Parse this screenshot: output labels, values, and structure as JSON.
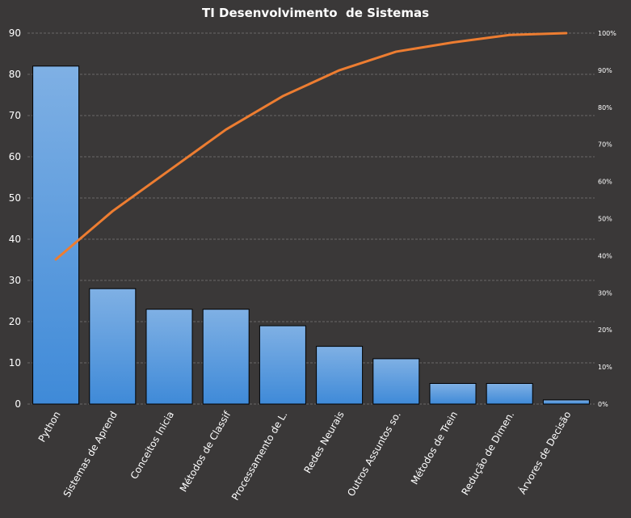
{
  "chart_data": {
    "type": "bar",
    "title": "TI Desenvolvimento  de Sistemas",
    "xlabel": "",
    "ylabel": "",
    "categories": [
      "Python",
      "Sistemas de Aprend",
      "Conceitos Inicia",
      "Métodos de Classif",
      "Processamento de L.",
      "Redes Neurais",
      "Outros Assuntos so.",
      "Métodos de Trein",
      "Redução de Dimen.",
      "Árvores de Decisão"
    ],
    "series": [
      {
        "type": "bar",
        "values": [
          82,
          28,
          23,
          23,
          19,
          14,
          11,
          5,
          5,
          1
        ]
      },
      {
        "type": "line",
        "axis": "right",
        "values": [
          0.39,
          0.52,
          0.63,
          0.74,
          0.83,
          0.9,
          0.95,
          0.975,
          0.995,
          1.0
        ]
      }
    ],
    "ylim": [
      0,
      90
    ],
    "y_ticks": [
      "0",
      "10",
      "20",
      "30",
      "40",
      "50",
      "60",
      "70",
      "80",
      "90"
    ],
    "y2lim": [
      0,
      1
    ],
    "y2_ticks": [
      "0%",
      "10%",
      "20%",
      "30%",
      "40%",
      "50%",
      "60%",
      "70%",
      "80%",
      "90%",
      "100%"
    ],
    "grid": true,
    "legend": "none",
    "colors": {
      "background": "#3a3838",
      "bar_top": "#7fb0e4",
      "bar_bottom": "#3f8ad8",
      "line": "#ed7d31",
      "grid": "#6a6868",
      "text": "#ffffff"
    }
  }
}
